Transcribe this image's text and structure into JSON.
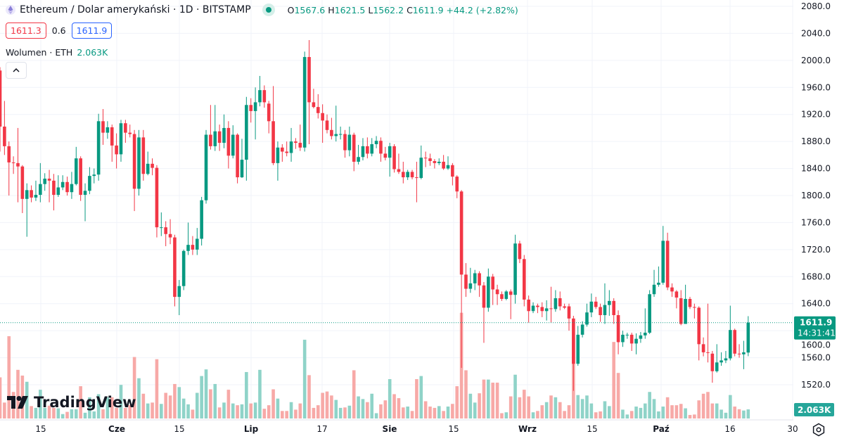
{
  "header": {
    "symbol_title": "Ethereum / Dolar amerykański · 1D · BITSTAMP",
    "symbol_icon": "ethereum-icon",
    "market_status": "open",
    "ohlc": {
      "o_label": "O",
      "o": "1567.6",
      "h_label": "H",
      "h": "1621.5",
      "l_label": "L",
      "l": "1562.2",
      "c_label": "C",
      "c": "1611.9",
      "change": "+44.2 (+2.82%)"
    },
    "bid": "1611.3",
    "spread": "0.6",
    "ask": "1611.9",
    "volume_label": "Wolumen · ETH",
    "volume_value": "2.063K",
    "collapse_icon": "chevron-up-icon"
  },
  "logo": "TradingView",
  "settings_icon": "gear-icon",
  "colors": {
    "up": "#089981",
    "down": "#f23645",
    "up_volume": "#8fd3c8",
    "down_volume": "#f7a9a7",
    "grid": "#f0f3fa"
  },
  "chart_data": {
    "type": "candlestick",
    "interval": "1D",
    "y_axis": {
      "min": 1520,
      "max": 2080,
      "ticks": [
        "2080.0",
        "2040.0",
        "2000.0",
        "1960.0",
        "1920.0",
        "1880.0",
        "1840.0",
        "1800.0",
        "1760.0",
        "1720.0",
        "1680.0",
        "1640.0",
        "1600.0",
        "1560.0",
        "1520.0"
      ]
    },
    "x_ticks": [
      "15",
      "Cze",
      "15",
      "Lip",
      "17",
      "Sie",
      "15",
      "Wrz",
      "15",
      "Paź",
      "16",
      "30"
    ],
    "last_price": {
      "value": "1611.9",
      "countdown": "14:31:41"
    },
    "last_volume": "2.063K",
    "grid": true,
    "candle_fields": [
      "open",
      "high",
      "low",
      "close",
      "volume_k"
    ],
    "candles": [
      [
        1985,
        1990,
        1865,
        1902,
        9.3
      ],
      [
        1902,
        1940,
        1860,
        1873,
        3.6
      ],
      [
        1873,
        1880,
        1800,
        1849,
        18.6
      ],
      [
        1849,
        1858,
        1832,
        1848,
        6.0
      ],
      [
        1848,
        1900,
        1790,
        1843,
        11.0
      ],
      [
        1843,
        1845,
        1774,
        1795,
        9.7
      ],
      [
        1795,
        1818,
        1739,
        1808,
        8.3
      ],
      [
        1808,
        1815,
        1790,
        1797,
        2.8
      ],
      [
        1797,
        1822,
        1792,
        1801,
        2.4
      ],
      [
        1801,
        1848,
        1790,
        1817,
        6.5
      ],
      [
        1817,
        1833,
        1807,
        1825,
        2.4
      ],
      [
        1825,
        1838,
        1790,
        1822,
        2.9
      ],
      [
        1822,
        1832,
        1778,
        1801,
        2.4
      ],
      [
        1801,
        1830,
        1798,
        1812,
        2.3
      ],
      [
        1812,
        1830,
        1808,
        1820,
        1.0
      ],
      [
        1820,
        1828,
        1800,
        1805,
        1.5
      ],
      [
        1805,
        1835,
        1795,
        1817,
        2.1
      ],
      [
        1817,
        1872,
        1815,
        1855,
        2.1
      ],
      [
        1855,
        1858,
        1792,
        1801,
        7.3
      ],
      [
        1801,
        1818,
        1762,
        1807,
        1.3
      ],
      [
        1807,
        1842,
        1802,
        1829,
        4.8
      ],
      [
        1829,
        1840,
        1818,
        1831,
        1.6
      ],
      [
        1831,
        1921,
        1822,
        1910,
        5.5
      ],
      [
        1910,
        1928,
        1875,
        1893,
        2.1
      ],
      [
        1893,
        1910,
        1884,
        1901,
        4.8
      ],
      [
        1901,
        1905,
        1850,
        1874,
        4.8
      ],
      [
        1874,
        1892,
        1840,
        1861,
        2.4
      ],
      [
        1861,
        1912,
        1850,
        1907,
        7.6
      ],
      [
        1907,
        1912,
        1878,
        1893,
        2.4
      ],
      [
        1893,
        1905,
        1886,
        1891,
        3.0
      ],
      [
        1891,
        1897,
        1777,
        1810,
        13.9
      ],
      [
        1810,
        1897,
        1800,
        1886,
        9.1
      ],
      [
        1886,
        1897,
        1822,
        1832,
        5.6
      ],
      [
        1832,
        1865,
        1830,
        1847,
        3.4
      ],
      [
        1847,
        1855,
        1830,
        1841,
        3.6
      ],
      [
        1841,
        1845,
        1738,
        1753,
        13.4
      ],
      [
        1753,
        1775,
        1740,
        1753,
        3.3
      ],
      [
        1753,
        1762,
        1725,
        1743,
        5.8
      ],
      [
        1743,
        1765,
        1728,
        1738,
        5.2
      ],
      [
        1738,
        1742,
        1636,
        1650,
        7.8
      ],
      [
        1650,
        1675,
        1623,
        1666,
        7.1
      ],
      [
        1666,
        1720,
        1660,
        1718,
        4.5
      ],
      [
        1718,
        1760,
        1712,
        1727,
        3.2
      ],
      [
        1727,
        1740,
        1712,
        1720,
        2.0
      ],
      [
        1720,
        1752,
        1712,
        1736,
        5.8
      ],
      [
        1736,
        1798,
        1726,
        1793,
        9.6
      ],
      [
        1793,
        1897,
        1788,
        1890,
        11.1
      ],
      [
        1890,
        1934,
        1868,
        1873,
        6.6
      ],
      [
        1873,
        1934,
        1866,
        1895,
        7.8
      ],
      [
        1895,
        1905,
        1866,
        1878,
        2.5
      ],
      [
        1878,
        1920,
        1870,
        1900,
        3.6
      ],
      [
        1900,
        1910,
        1840,
        1859,
        6.5
      ],
      [
        1859,
        1904,
        1855,
        1890,
        3.4
      ],
      [
        1890,
        1892,
        1818,
        1827,
        3.0
      ],
      [
        1827,
        1884,
        1826,
        1853,
        3.2
      ],
      [
        1853,
        1946,
        1822,
        1934,
        10.5
      ],
      [
        1934,
        1944,
        1908,
        1925,
        3.4
      ],
      [
        1925,
        1960,
        1883,
        1938,
        3.6
      ],
      [
        1938,
        1977,
        1932,
        1956,
        11.0
      ],
      [
        1956,
        1963,
        1930,
        1938,
        2.2
      ],
      [
        1936,
        1940,
        1892,
        1910,
        3.0
      ],
      [
        1910,
        1962,
        1845,
        1848,
        6.6
      ],
      [
        1848,
        1880,
        1822,
        1871,
        4.5
      ],
      [
        1871,
        1876,
        1850,
        1865,
        1.7
      ],
      [
        1865,
        1880,
        1858,
        1863,
        1.7
      ],
      [
        1863,
        1900,
        1850,
        1880,
        3.7
      ],
      [
        1880,
        1885,
        1869,
        1878,
        2.0
      ],
      [
        1878,
        1905,
        1866,
        1871,
        3.4
      ],
      [
        1871,
        2013,
        1865,
        2005,
        17.8
      ],
      [
        2005,
        2030,
        1876,
        1938,
        9.8
      ],
      [
        1938,
        1958,
        1929,
        1931,
        2.4
      ],
      [
        1931,
        1950,
        1914,
        1922,
        3.0
      ],
      [
        1922,
        1935,
        1878,
        1911,
        5.8
      ],
      [
        1911,
        1920,
        1892,
        1897,
        6.1
      ],
      [
        1897,
        1915,
        1883,
        1888,
        5.2
      ],
      [
        1888,
        1933,
        1880,
        1891,
        4.2
      ],
      [
        1891,
        1902,
        1883,
        1891,
        2.4
      ],
      [
        1891,
        1897,
        1856,
        1867,
        2.5
      ],
      [
        1867,
        1902,
        1858,
        1890,
        2.9
      ],
      [
        1890,
        1893,
        1836,
        1850,
        10.9
      ],
      [
        1850,
        1875,
        1846,
        1857,
        5.0
      ],
      [
        1857,
        1885,
        1852,
        1873,
        4.4
      ],
      [
        1873,
        1886,
        1855,
        1862,
        3.7
      ],
      [
        1862,
        1885,
        1858,
        1876,
        5.6
      ],
      [
        1876,
        1888,
        1870,
        1881,
        1.2
      ],
      [
        1881,
        1886,
        1850,
        1862,
        3.2
      ],
      [
        1862,
        1872,
        1852,
        1856,
        4.1
      ],
      [
        1856,
        1878,
        1828,
        1873,
        8.9
      ],
      [
        1873,
        1876,
        1834,
        1839,
        5.5
      ],
      [
        1839,
        1862,
        1832,
        1835,
        4.6
      ],
      [
        1835,
        1850,
        1818,
        1827,
        2.5
      ],
      [
        1827,
        1838,
        1823,
        1835,
        2.7
      ],
      [
        1835,
        1838,
        1824,
        1827,
        1.7
      ],
      [
        1827,
        1850,
        1790,
        1826,
        8.9
      ],
      [
        1826,
        1874,
        1824,
        1856,
        9.6
      ],
      [
        1856,
        1865,
        1842,
        1855,
        3.9
      ],
      [
        1855,
        1862,
        1844,
        1851,
        2.7
      ],
      [
        1851,
        1854,
        1840,
        1848,
        2.4
      ],
      [
        1848,
        1855,
        1845,
        1850,
        2.8
      ],
      [
        1850,
        1860,
        1838,
        1840,
        1.7
      ],
      [
        1840,
        1858,
        1838,
        1845,
        2.7
      ],
      [
        1845,
        1848,
        1815,
        1828,
        3.3
      ],
      [
        1828,
        1830,
        1796,
        1806,
        7.3
      ],
      [
        1806,
        1808,
        1545,
        1683,
        23.9
      ],
      [
        1683,
        1700,
        1650,
        1662,
        10.9
      ],
      [
        1662,
        1693,
        1656,
        1670,
        5.6
      ],
      [
        1670,
        1690,
        1660,
        1685,
        3.6
      ],
      [
        1685,
        1688,
        1650,
        1667,
        5.7
      ],
      [
        1667,
        1672,
        1582,
        1634,
        8.8
      ],
      [
        1634,
        1692,
        1628,
        1680,
        8.8
      ],
      [
        1680,
        1684,
        1638,
        1661,
        8.1
      ],
      [
        1661,
        1668,
        1638,
        1654,
        8.1
      ],
      [
        1654,
        1658,
        1644,
        1647,
        1.2
      ],
      [
        1647,
        1660,
        1645,
        1658,
        1.4
      ],
      [
        1658,
        1661,
        1617,
        1653,
        5.0
      ],
      [
        1653,
        1742,
        1640,
        1729,
        9.9
      ],
      [
        1729,
        1733,
        1700,
        1706,
        4.8
      ],
      [
        1706,
        1712,
        1636,
        1646,
        6.5
      ],
      [
        1646,
        1652,
        1612,
        1629,
        5.0
      ],
      [
        1629,
        1642,
        1626,
        1637,
        1.4
      ],
      [
        1637,
        1640,
        1626,
        1635,
        1.7
      ],
      [
        1635,
        1642,
        1620,
        1629,
        3.0
      ],
      [
        1629,
        1645,
        1615,
        1633,
        3.7
      ],
      [
        1633,
        1665,
        1612,
        1632,
        5.2
      ],
      [
        1632,
        1660,
        1628,
        1648,
        4.8
      ],
      [
        1648,
        1658,
        1630,
        1636,
        3.7
      ],
      [
        1636,
        1640,
        1632,
        1634,
        1.7
      ],
      [
        1636,
        1640,
        1600,
        1618,
        3.0
      ],
      [
        1618,
        1622,
        1511,
        1551,
        18.3
      ],
      [
        1551,
        1607,
        1548,
        1594,
        5.3
      ],
      [
        1594,
        1614,
        1590,
        1609,
        4.4
      ],
      [
        1609,
        1640,
        1606,
        1627,
        5.2
      ],
      [
        1627,
        1655,
        1620,
        1643,
        3.4
      ],
      [
        1643,
        1650,
        1632,
        1635,
        1.4
      ],
      [
        1635,
        1640,
        1613,
        1623,
        1.6
      ],
      [
        1623,
        1670,
        1610,
        1638,
        3.9
      ],
      [
        1638,
        1660,
        1622,
        1644,
        2.8
      ],
      [
        1644,
        1648,
        1610,
        1623,
        17.3
      ],
      [
        1623,
        1630,
        1565,
        1583,
        10.3
      ],
      [
        1583,
        1600,
        1576,
        1594,
        2.0
      ],
      [
        1594,
        1597,
        1588,
        1594,
        0.9
      ],
      [
        1594,
        1597,
        1570,
        1581,
        1.7
      ],
      [
        1581,
        1596,
        1565,
        1588,
        2.7
      ],
      [
        1588,
        1598,
        1582,
        1593,
        2.4
      ],
      [
        1593,
        1633,
        1588,
        1597,
        3.4
      ],
      [
        1597,
        1660,
        1595,
        1654,
        6.0
      ],
      [
        1654,
        1690,
        1650,
        1668,
        4.4
      ],
      [
        1668,
        1695,
        1665,
        1671,
        1.6
      ],
      [
        1671,
        1755,
        1668,
        1733,
        2.7
      ],
      [
        1733,
        1745,
        1660,
        1664,
        4.8
      ],
      [
        1664,
        1670,
        1650,
        1658,
        3.0
      ],
      [
        1658,
        1660,
        1633,
        1649,
        3.0
      ],
      [
        1648,
        1660,
        1608,
        1610,
        3.3
      ],
      [
        1610,
        1668,
        1610,
        1647,
        2.3
      ],
      [
        1647,
        1650,
        1632,
        1635,
        0.8
      ],
      [
        1635,
        1640,
        1618,
        1634,
        0.9
      ],
      [
        1634,
        1636,
        1556,
        1580,
        4.1
      ],
      [
        1580,
        1590,
        1562,
        1568,
        5.6
      ],
      [
        1568,
        1640,
        1553,
        1567,
        6.0
      ],
      [
        1566,
        1570,
        1523,
        1540,
        3.4
      ],
      [
        1540,
        1580,
        1538,
        1553,
        3.4
      ],
      [
        1553,
        1568,
        1548,
        1556,
        2.0
      ],
      [
        1556,
        1570,
        1552,
        1559,
        1.3
      ],
      [
        1559,
        1637,
        1556,
        1601,
        5.3
      ],
      [
        1601,
        1603,
        1562,
        1566,
        2.7
      ],
      [
        1566,
        1580,
        1560,
        1565,
        2.1
      ],
      [
        1565,
        1585,
        1543,
        1568,
        1.8
      ],
      [
        1567.6,
        1621.5,
        1562.2,
        1611.9,
        2.063
      ]
    ]
  }
}
